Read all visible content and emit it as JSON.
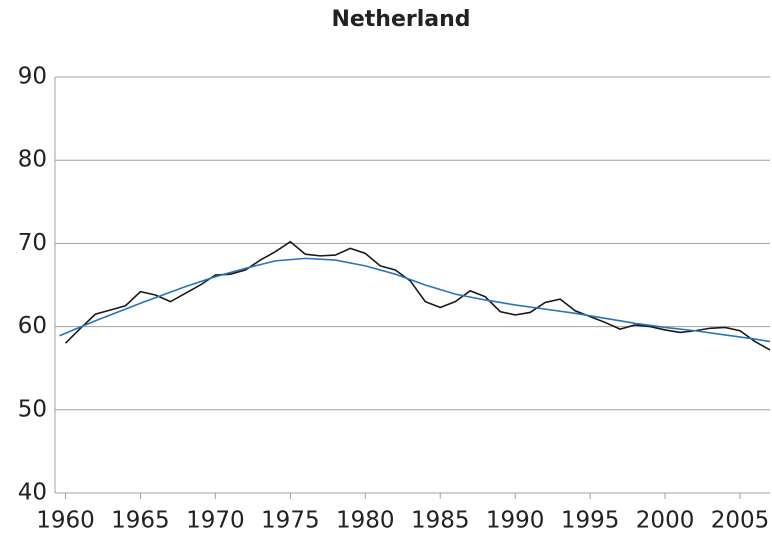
{
  "chart_data": {
    "type": "line",
    "title": "Netherland",
    "xlim": [
      1959.3,
      2007
    ],
    "xticks": [
      1960,
      1965,
      1970,
      1975,
      1980,
      1985,
      1990,
      1995,
      2000,
      2005
    ],
    "ylim": [
      40,
      90
    ],
    "yticks": [
      40,
      50,
      60,
      70,
      80,
      90
    ],
    "grid": true,
    "series": [
      {
        "color": "#1a1a1a",
        "x": [
          1960,
          1961,
          1962,
          1963,
          1964,
          1965,
          1966,
          1967,
          1968,
          1969,
          1970,
          1971,
          1972,
          1973,
          1974,
          1975,
          1976,
          1977,
          1978,
          1979,
          1980,
          1981,
          1982,
          1983,
          1984,
          1985,
          1986,
          1987,
          1988,
          1989,
          1990,
          1991,
          1992,
          1993,
          1994,
          1995,
          1996,
          1997,
          1998,
          1999,
          2000,
          2001,
          2002,
          2003,
          2004,
          2005,
          2006,
          2007
        ],
        "values": [
          58.0,
          59.8,
          61.5,
          62.0,
          62.5,
          64.2,
          63.8,
          63.0,
          64.0,
          65.0,
          66.2,
          66.3,
          66.8,
          68.0,
          69.0,
          70.2,
          68.7,
          68.5,
          68.6,
          69.4,
          68.8,
          67.3,
          66.8,
          65.5,
          63.0,
          62.3,
          63.0,
          64.3,
          63.6,
          61.8,
          61.4,
          61.7,
          62.9,
          63.3,
          61.9,
          61.2,
          60.5,
          59.7,
          60.2,
          60.0,
          59.6,
          59.3,
          59.5,
          59.8,
          59.9,
          59.5,
          58.2,
          57.2
        ]
      },
      {
        "color": "#2a74b8",
        "x": [
          1959.6,
          1962,
          1965,
          1968,
          1970,
          1972,
          1974,
          1976,
          1978,
          1980,
          1982,
          1984,
          1986,
          1988,
          1990,
          1992,
          1994,
          1996,
          1998,
          2000,
          2002,
          2004,
          2006,
          2007
        ],
        "values": [
          58.9,
          60.7,
          62.8,
          64.8,
          66.0,
          67.0,
          67.9,
          68.2,
          68.0,
          67.3,
          66.3,
          65.0,
          63.9,
          63.2,
          62.6,
          62.1,
          61.6,
          61.0,
          60.4,
          59.9,
          59.5,
          59.0,
          58.5,
          58.2
        ]
      }
    ]
  }
}
